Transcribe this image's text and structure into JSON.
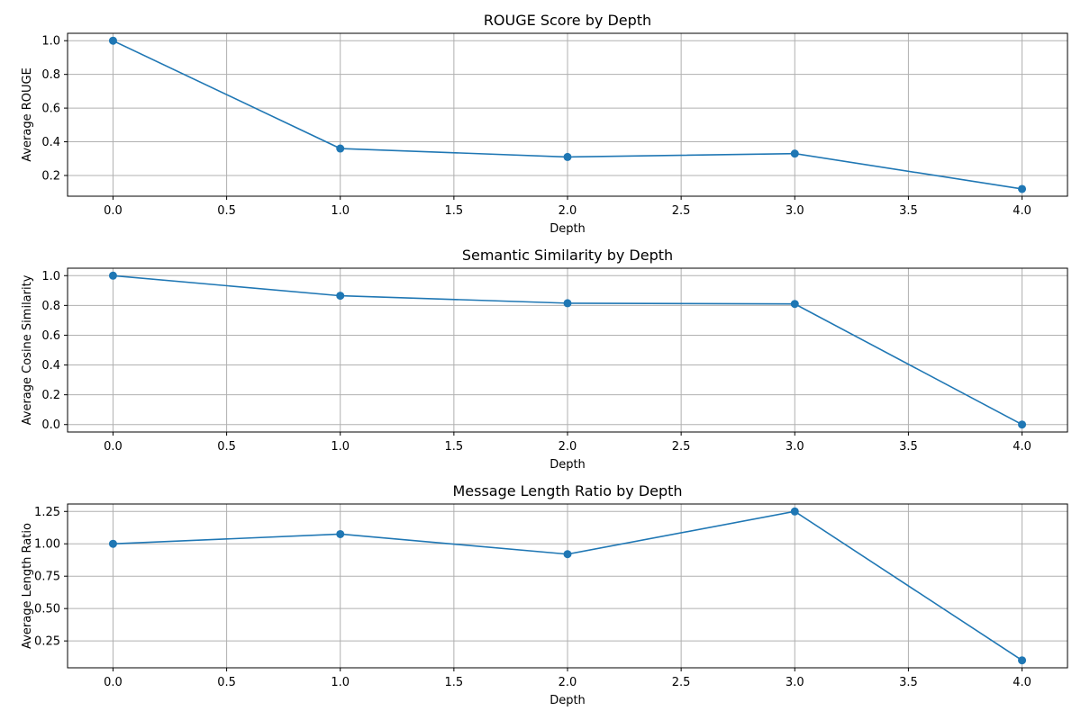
{
  "chart_data": [
    {
      "type": "line",
      "title": "ROUGE Score by Depth",
      "xlabel": "Depth",
      "ylabel": "Average ROUGE",
      "x": [
        0,
        1,
        2,
        3,
        4
      ],
      "series": [
        {
          "values": [
            1.0,
            0.36,
            0.31,
            0.33,
            0.12
          ]
        }
      ],
      "xlim": [
        -0.2,
        4.2
      ],
      "ylim": [
        0.077,
        1.044
      ],
      "xticks": [
        0.0,
        0.5,
        1.0,
        1.5,
        2.0,
        2.5,
        3.0,
        3.5,
        4.0
      ],
      "xtick_labels": [
        "0.0",
        "0.5",
        "1.0",
        "1.5",
        "2.0",
        "2.5",
        "3.0",
        "3.5",
        "4.0"
      ],
      "yticks": [
        0.2,
        0.4,
        0.6,
        0.8,
        1.0
      ],
      "ytick_labels": [
        "0.2",
        "0.4",
        "0.6",
        "0.8",
        "1.0"
      ],
      "grid": true,
      "color": "#1f77b4",
      "marker": "circle"
    },
    {
      "type": "line",
      "title": "Semantic Similarity by Depth",
      "xlabel": "Depth",
      "ylabel": "Average Cosine Similarity",
      "x": [
        0,
        1,
        2,
        3,
        4
      ],
      "series": [
        {
          "values": [
            1.0,
            0.865,
            0.815,
            0.81,
            0.0
          ]
        }
      ],
      "xlim": [
        -0.2,
        4.2
      ],
      "ylim": [
        -0.05,
        1.05
      ],
      "xticks": [
        0.0,
        0.5,
        1.0,
        1.5,
        2.0,
        2.5,
        3.0,
        3.5,
        4.0
      ],
      "xtick_labels": [
        "0.0",
        "0.5",
        "1.0",
        "1.5",
        "2.0",
        "2.5",
        "3.0",
        "3.5",
        "4.0"
      ],
      "yticks": [
        0.0,
        0.2,
        0.4,
        0.6,
        0.8,
        1.0
      ],
      "ytick_labels": [
        "0.0",
        "0.2",
        "0.4",
        "0.6",
        "0.8",
        "1.0"
      ],
      "grid": true,
      "color": "#1f77b4",
      "marker": "circle"
    },
    {
      "type": "line",
      "title": "Message Length Ratio by Depth",
      "xlabel": "Depth",
      "ylabel": "Average Length Ratio",
      "x": [
        0,
        1,
        2,
        3,
        4
      ],
      "series": [
        {
          "values": [
            1.0,
            1.075,
            0.92,
            1.25,
            0.1
          ]
        }
      ],
      "xlim": [
        -0.2,
        4.2
      ],
      "ylim": [
        0.0425,
        1.3075
      ],
      "xticks": [
        0.0,
        0.5,
        1.0,
        1.5,
        2.0,
        2.5,
        3.0,
        3.5,
        4.0
      ],
      "xtick_labels": [
        "0.0",
        "0.5",
        "1.0",
        "1.5",
        "2.0",
        "2.5",
        "3.0",
        "3.5",
        "4.0"
      ],
      "yticks": [
        0.25,
        0.5,
        0.75,
        1.0,
        1.25
      ],
      "ytick_labels": [
        "0.25",
        "0.50",
        "0.75",
        "1.00",
        "1.25"
      ],
      "grid": true,
      "color": "#1f77b4",
      "marker": "circle"
    }
  ]
}
